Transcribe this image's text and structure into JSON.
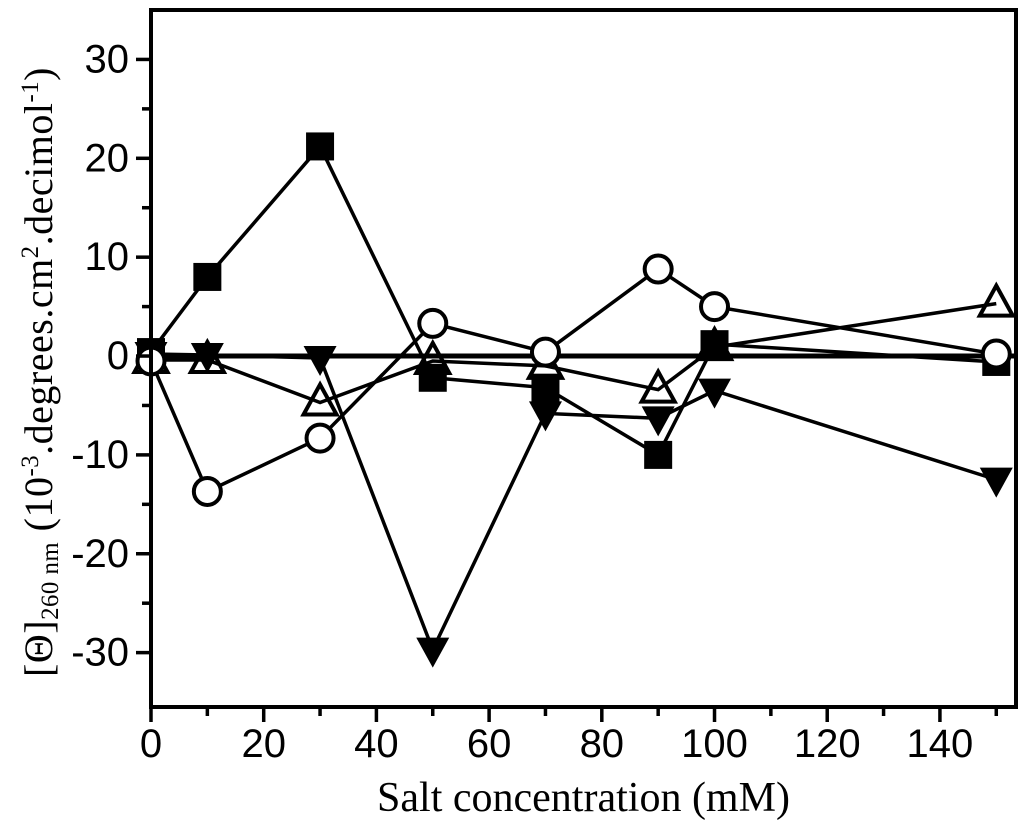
{
  "figure": {
    "background_color": "#ffffff",
    "frame_color": "#000000",
    "line_color": "#000000",
    "marker_fill_open": "#ffffff"
  },
  "chart_data": {
    "type": "line",
    "title": "",
    "xlabel": "Salt concentration (mM)",
    "ylabel_parts": {
      "bracket_theta": "[Θ]",
      "subscript": "260 nm",
      "p1": " (10",
      "s1": "-3",
      "p2": ".degrees.cm",
      "s2": "2",
      "p3": ".decimol",
      "s3": "-1",
      "p4": ")"
    },
    "x": [
      0,
      10,
      30,
      50,
      70,
      90,
      100,
      150
    ],
    "series": [
      {
        "name": "filled-square",
        "marker": "square-filled",
        "values": [
          0.4,
          8.0,
          21.2,
          -2.2,
          -3.2,
          -10.0,
          1.2,
          -0.6
        ]
      },
      {
        "name": "filled-down-triangle",
        "marker": "triangle-down-filled",
        "values": [
          0.2,
          0.1,
          -0.2,
          -29.7,
          -5.8,
          -6.3,
          -3.5,
          -12.5
        ]
      },
      {
        "name": "open-up-triangle",
        "marker": "triangle-up-open",
        "values": [
          -0.4,
          -0.4,
          -4.7,
          -0.5,
          -1.0,
          -3.4,
          0.9,
          5.3
        ]
      },
      {
        "name": "open-circle",
        "marker": "circle-open",
        "values": [
          -0.5,
          -13.7,
          -8.3,
          3.3,
          0.4,
          8.8,
          5.0,
          0.2
        ]
      }
    ],
    "xlim": [
      0,
      153.5
    ],
    "ylim": [
      -35.5,
      35
    ],
    "x_major_ticks": [
      0,
      20,
      40,
      60,
      80,
      100,
      120,
      140
    ],
    "x_minor_ticks": [
      10,
      30,
      50,
      70,
      90,
      110,
      130,
      150
    ],
    "y_major_ticks": [
      -30,
      -20,
      -10,
      0,
      10,
      20,
      30
    ],
    "y_minor_ticks": [
      -25,
      -15,
      -5,
      5,
      15,
      25
    ],
    "zero_line": true,
    "grid": false,
    "legend": "none"
  }
}
